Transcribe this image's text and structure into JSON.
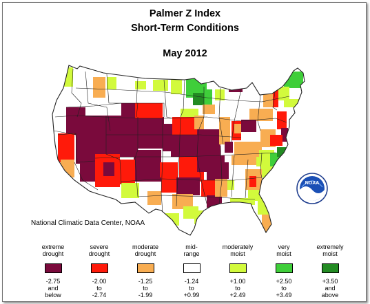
{
  "header": {
    "title": "Palmer Z Index",
    "subtitle": "Short-Term Conditions",
    "period": "May 2012"
  },
  "credit": "National Climatic Data Center, NOAA",
  "logo_text": "NOAA",
  "colors": {
    "extreme_drought": "#7a0a3c",
    "severe_drought": "#ff1a0a",
    "moderate_drought": "#f8ad52",
    "mid_range": "#ffffff",
    "moderately_moist": "#d2fa3c",
    "very_moist": "#3fce3a",
    "extremely_moist": "#238b23",
    "border": "#2a2a2a"
  },
  "legend": [
    {
      "label": "extreme\ndrought",
      "range": "-2.75\nand\nbelow",
      "color": "#7a0a3c"
    },
    {
      "label": "severe\ndrought",
      "range": "-2.00\nto\n-2.74",
      "color": "#ff1a0a"
    },
    {
      "label": "moderate\ndrought",
      "range": "-1.25\nto\n-1.99",
      "color": "#f8ad52"
    },
    {
      "label": "mid-\nrange",
      "range": "-1.24\nto\n+0.99",
      "color": "#ffffff"
    },
    {
      "label": "moderately\nmoist",
      "range": "+1.00\nto\n+2.49",
      "color": "#d2fa3c"
    },
    {
      "label": "very\nmoist",
      "range": "+2.50\nto\n+3.49",
      "color": "#3fce3a"
    },
    {
      "label": "extremely\nmoist",
      "range": "+3.50\nand\nabove",
      "color": "#238b23"
    }
  ]
}
